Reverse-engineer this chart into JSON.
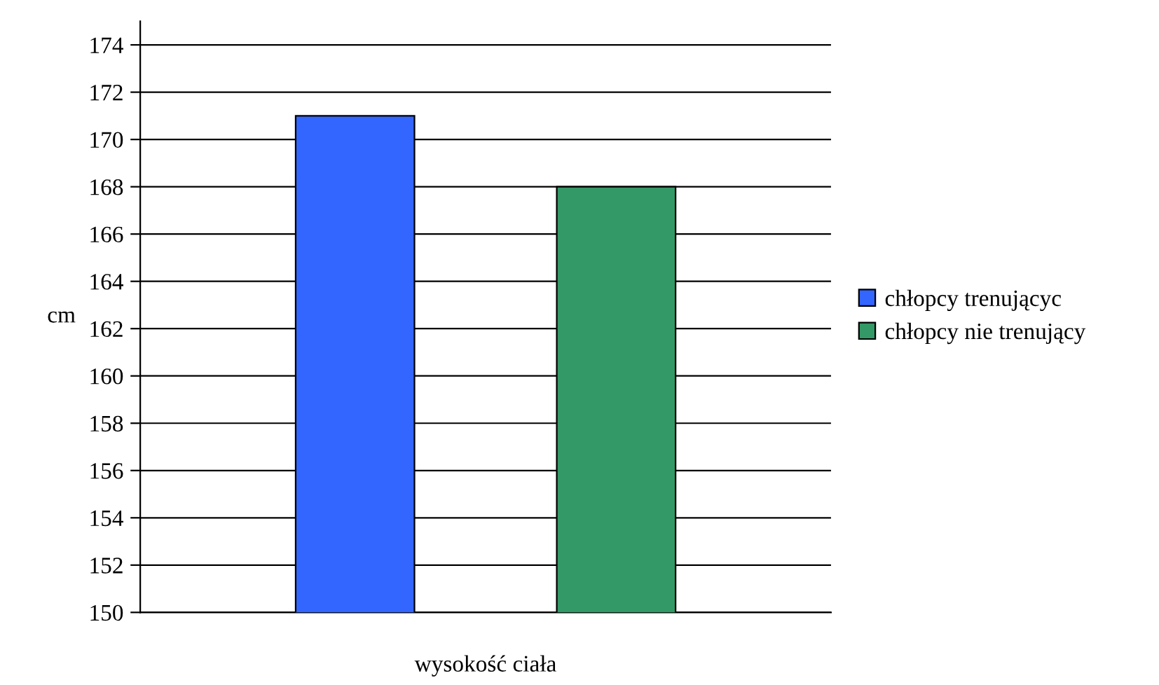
{
  "chart_data": {
    "type": "bar",
    "ylabel": "cm",
    "categories": [
      "wysokość ciała"
    ],
    "series": [
      {
        "name": "chłopcy trenującyc",
        "color": "#3366ff",
        "values": [
          171
        ]
      },
      {
        "name": "chłopcy nie trenujący",
        "color": "#339966",
        "values": [
          168
        ]
      }
    ],
    "ylim": [
      150,
      175
    ],
    "yticks": [
      150,
      152,
      154,
      156,
      158,
      160,
      162,
      164,
      166,
      168,
      170,
      172,
      174
    ],
    "grid": "y",
    "legend": "right"
  }
}
